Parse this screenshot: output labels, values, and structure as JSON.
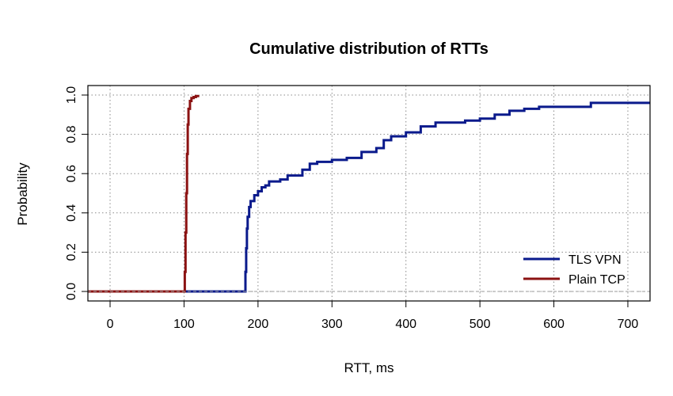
{
  "chart_data": {
    "type": "line",
    "title": "Cumulative distribution of RTTs",
    "xlabel": "RTT, ms",
    "ylabel": "Probability",
    "xlim": [
      -30,
      730
    ],
    "ylim": [
      0,
      1
    ],
    "x_ticks": [
      0,
      100,
      200,
      300,
      400,
      500,
      600,
      700
    ],
    "y_ticks": [
      0.0,
      0.2,
      0.4,
      0.6,
      0.8,
      1.0
    ],
    "x_tick_labels": [
      "0",
      "100",
      "200",
      "300",
      "400",
      "500",
      "600",
      "700"
    ],
    "y_tick_labels": [
      "0.0",
      "0.2",
      "0.4",
      "0.6",
      "0.8",
      "1.0"
    ],
    "grid": true,
    "legend_position": "bottom-right",
    "series": [
      {
        "name": "TLS VPN",
        "color": "#0a1a8c",
        "x": [
          -30,
          182,
          183,
          184,
          185,
          186,
          188,
          190,
          195,
          200,
          205,
          210,
          215,
          220,
          230,
          240,
          250,
          260,
          270,
          280,
          300,
          320,
          340,
          360,
          370,
          380,
          400,
          420,
          440,
          460,
          480,
          500,
          520,
          540,
          560,
          580,
          600,
          650,
          700,
          730
        ],
        "y": [
          0,
          0,
          0.1,
          0.22,
          0.32,
          0.38,
          0.43,
          0.46,
          0.49,
          0.51,
          0.53,
          0.54,
          0.56,
          0.56,
          0.57,
          0.59,
          0.59,
          0.62,
          0.65,
          0.66,
          0.67,
          0.68,
          0.71,
          0.73,
          0.77,
          0.79,
          0.81,
          0.84,
          0.86,
          0.86,
          0.87,
          0.88,
          0.9,
          0.92,
          0.93,
          0.94,
          0.94,
          0.96,
          0.96,
          0.96
        ]
      },
      {
        "name": "Plain TCP",
        "color": "#8b1212",
        "x": [
          -30,
          100,
          101,
          102,
          103,
          104,
          105,
          106,
          108,
          110,
          113,
          116,
          119
        ],
        "y": [
          0,
          0,
          0.1,
          0.3,
          0.5,
          0.7,
          0.85,
          0.93,
          0.97,
          0.985,
          0.99,
          0.995,
          1.0
        ]
      }
    ]
  }
}
